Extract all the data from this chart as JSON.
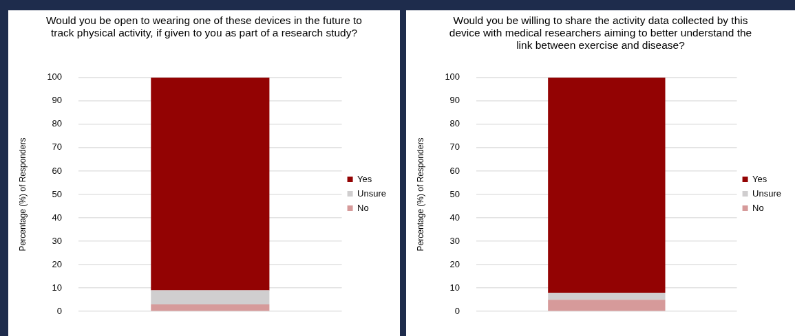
{
  "chart_data": [
    {
      "type": "bar",
      "title": "Would you be open to wearing one of these devices in the future to track physical activity, if given to you as part of a research study?",
      "ylabel": "Percentage (%) of Responders",
      "categories": [
        null
      ],
      "stacked": true,
      "series": [
        {
          "name": "No",
          "color": "#d69a9a",
          "values": [
            3
          ]
        },
        {
          "name": "Unsure",
          "color": "#d0cecf",
          "values": [
            6
          ]
        },
        {
          "name": "Yes",
          "color": "#930303",
          "values": [
            91
          ]
        }
      ],
      "ylim": [
        0,
        100
      ],
      "yticks": [
        0,
        10,
        20,
        30,
        40,
        50,
        60,
        70,
        80,
        90,
        100
      ],
      "grid": "y",
      "legend": "right"
    },
    {
      "type": "bar",
      "title": "Would you be willing to share the activity data collected by this device with medical researchers aiming to better understand the link between exercise and disease?",
      "ylabel": "Percentage (%) of Responders",
      "categories": [
        null
      ],
      "stacked": true,
      "series": [
        {
          "name": "No",
          "color": "#d69a9a",
          "values": [
            5
          ]
        },
        {
          "name": "Unsure",
          "color": "#d0cecf",
          "values": [
            3
          ]
        },
        {
          "name": "Yes",
          "color": "#930303",
          "values": [
            92
          ]
        }
      ],
      "ylim": [
        0,
        100
      ],
      "yticks": [
        0,
        10,
        20,
        30,
        40,
        50,
        60,
        70,
        80,
        90,
        100
      ],
      "grid": "y",
      "legend": "right"
    }
  ]
}
